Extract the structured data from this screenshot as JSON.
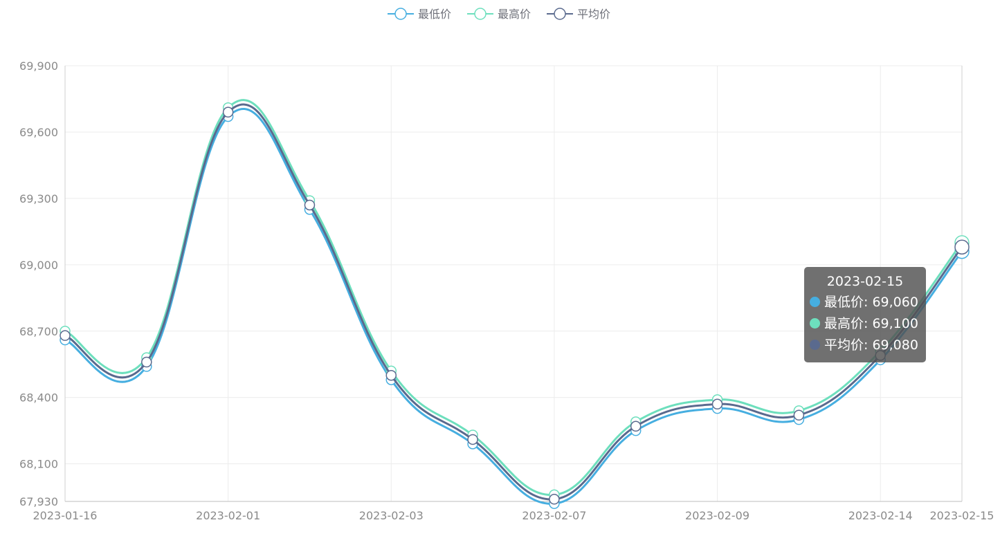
{
  "chart_data": {
    "type": "line",
    "smooth": true,
    "title": "",
    "xlabel": "",
    "ylabel": "",
    "categories": [
      "2023-01-16",
      "",
      "2023-02-01",
      "",
      "2023-02-03",
      "",
      "2023-02-07",
      "",
      "2023-02-09",
      "",
      "2023-02-14",
      "2023-02-15"
    ],
    "x_tick_labels": [
      "2023-01-16",
      "2023-02-01",
      "2023-02-03",
      "2023-02-07",
      "2023-02-09",
      "2023-02-14"
    ],
    "y_tick_labels": [
      "67,930",
      "68,100",
      "68,400",
      "68,700",
      "69,000",
      "69,300",
      "69,600",
      "69,900"
    ],
    "ylim": [
      67930,
      69900
    ],
    "legend_position": "top-center",
    "grid": true,
    "series": [
      {
        "name": "最低价",
        "color": "#46aee0",
        "values": [
          68660,
          68540,
          69670,
          69250,
          68480,
          68190,
          67920,
          68250,
          68350,
          68300,
          68570,
          69060
        ]
      },
      {
        "name": "最高价",
        "color": "#6ddfbd",
        "values": [
          68700,
          68580,
          69710,
          69290,
          68520,
          68230,
          67960,
          68290,
          68390,
          68340,
          68610,
          69100
        ]
      },
      {
        "name": "平均价",
        "color": "#5a6a8e",
        "values": [
          68680,
          68560,
          69690,
          69270,
          68500,
          68210,
          67940,
          68270,
          68370,
          68320,
          68590,
          69080
        ]
      }
    ]
  },
  "tooltip": {
    "title": "2023-02-15",
    "rows": [
      {
        "text": "最低价: 69,060",
        "color": "#46aee0"
      },
      {
        "text": "最高价: 69,100",
        "color": "#6ddfbd"
      },
      {
        "text": "平均价: 69,080",
        "color": "#5a6a8e"
      }
    ]
  }
}
